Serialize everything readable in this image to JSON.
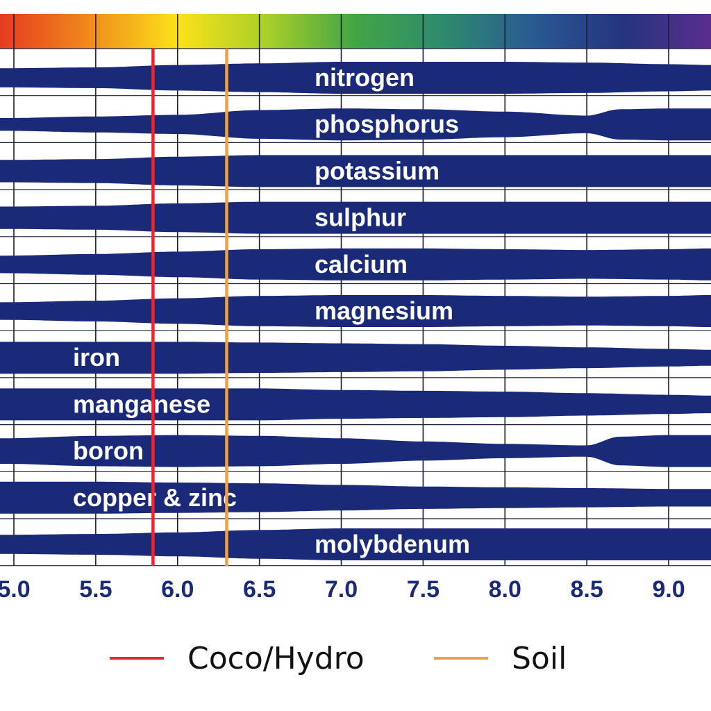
{
  "chart_data": {
    "type": "area",
    "title": "",
    "xlabel": "",
    "ylabel": "",
    "x_ticks": [
      "5.0",
      "5.5",
      "6.0",
      "6.5",
      "7.0",
      "7.5",
      "8.0",
      "8.5",
      "9.0"
    ],
    "xlim": [
      4.95,
      9.25
    ],
    "color_scale": [
      "#e63b1e",
      "#f08a1c",
      "#fbe219",
      "#a9cf2a",
      "#42a544",
      "#2e8a6e",
      "#2a5a92",
      "#25347f",
      "#5a2e8e"
    ],
    "band_color": "#1b2a78",
    "grid": true,
    "series": [
      {
        "name": "nitrogen",
        "x": [
          4.95,
          5.5,
          6.0,
          6.5,
          7.0,
          7.5,
          8.0,
          8.5,
          9.0,
          9.25
        ],
        "availability": [
          0.6,
          0.65,
          0.8,
          0.9,
          1.0,
          1.0,
          1.0,
          0.95,
          0.85,
          0.8
        ]
      },
      {
        "name": "phosphorus",
        "x": [
          4.95,
          5.5,
          6.0,
          6.5,
          7.0,
          7.5,
          8.0,
          8.5,
          8.7,
          9.0,
          9.25
        ],
        "availability": [
          0.4,
          0.5,
          0.6,
          0.9,
          1.0,
          0.95,
          0.8,
          0.55,
          0.95,
          1.0,
          1.0
        ]
      },
      {
        "name": "potassium",
        "x": [
          4.95,
          5.5,
          6.0,
          6.5,
          7.0,
          7.5,
          8.0,
          8.5,
          9.0,
          9.25
        ],
        "availability": [
          0.7,
          0.75,
          0.9,
          1.0,
          1.0,
          1.0,
          1.0,
          1.0,
          1.0,
          1.0
        ]
      },
      {
        "name": "sulphur",
        "x": [
          4.95,
          5.5,
          6.0,
          6.5,
          7.0,
          7.5,
          8.0,
          8.5,
          9.0,
          9.25
        ],
        "availability": [
          0.7,
          0.75,
          0.9,
          1.0,
          1.0,
          1.0,
          1.0,
          1.0,
          1.0,
          1.0
        ]
      },
      {
        "name": "calcium",
        "x": [
          4.95,
          5.5,
          6.0,
          6.5,
          7.0,
          7.5,
          8.0,
          8.5,
          9.0,
          9.25
        ],
        "availability": [
          0.55,
          0.65,
          0.8,
          0.95,
          1.0,
          1.0,
          0.95,
          0.9,
          0.95,
          1.0
        ]
      },
      {
        "name": "magnesium",
        "x": [
          4.95,
          5.5,
          6.0,
          6.5,
          7.0,
          7.5,
          8.0,
          8.5,
          9.0,
          9.25
        ],
        "availability": [
          0.55,
          0.65,
          0.8,
          0.95,
          1.0,
          1.0,
          0.95,
          0.9,
          0.95,
          1.0
        ]
      },
      {
        "name": "iron",
        "x": [
          4.95,
          5.5,
          6.0,
          6.5,
          7.0,
          7.5,
          8.0,
          8.5,
          9.0,
          9.25
        ],
        "availability": [
          1.0,
          1.0,
          1.0,
          0.95,
          0.9,
          0.85,
          0.75,
          0.65,
          0.55,
          0.5
        ]
      },
      {
        "name": "manganese",
        "x": [
          4.95,
          5.5,
          6.0,
          6.5,
          7.0,
          7.5,
          8.0,
          8.5,
          9.0,
          9.25
        ],
        "availability": [
          1.0,
          1.0,
          1.0,
          1.0,
          0.9,
          0.85,
          0.8,
          0.7,
          0.6,
          0.55
        ]
      },
      {
        "name": "boron",
        "x": [
          4.95,
          5.5,
          6.0,
          6.5,
          7.0,
          7.5,
          8.0,
          8.5,
          8.7,
          9.0,
          9.25
        ],
        "availability": [
          0.8,
          0.95,
          1.0,
          0.95,
          0.8,
          0.6,
          0.45,
          0.35,
          0.9,
          1.0,
          1.0
        ]
      },
      {
        "name": "copper & zinc",
        "x": [
          4.95,
          5.5,
          6.0,
          6.5,
          7.0,
          7.5,
          8.0,
          8.5,
          9.0,
          9.25
        ],
        "availability": [
          1.0,
          1.0,
          0.95,
          0.9,
          0.8,
          0.7,
          0.65,
          0.6,
          0.55,
          0.55
        ]
      },
      {
        "name": "molybdenum",
        "x": [
          4.95,
          5.5,
          6.0,
          6.5,
          7.0,
          7.5,
          8.0,
          8.5,
          9.0,
          9.25
        ],
        "availability": [
          0.6,
          0.65,
          0.75,
          0.9,
          1.0,
          1.0,
          1.0,
          1.0,
          1.0,
          1.0
        ]
      }
    ],
    "reference_lines": [
      {
        "name": "Coco/Hydro",
        "x": 5.85,
        "color": "#e8272e"
      },
      {
        "name": "Soil",
        "x": 6.3,
        "color": "#eea04a"
      }
    ]
  },
  "legend": {
    "coco_label": "Coco/Hydro",
    "coco_color": "#e8272e",
    "soil_label": "Soil",
    "soil_color": "#eea04a"
  }
}
